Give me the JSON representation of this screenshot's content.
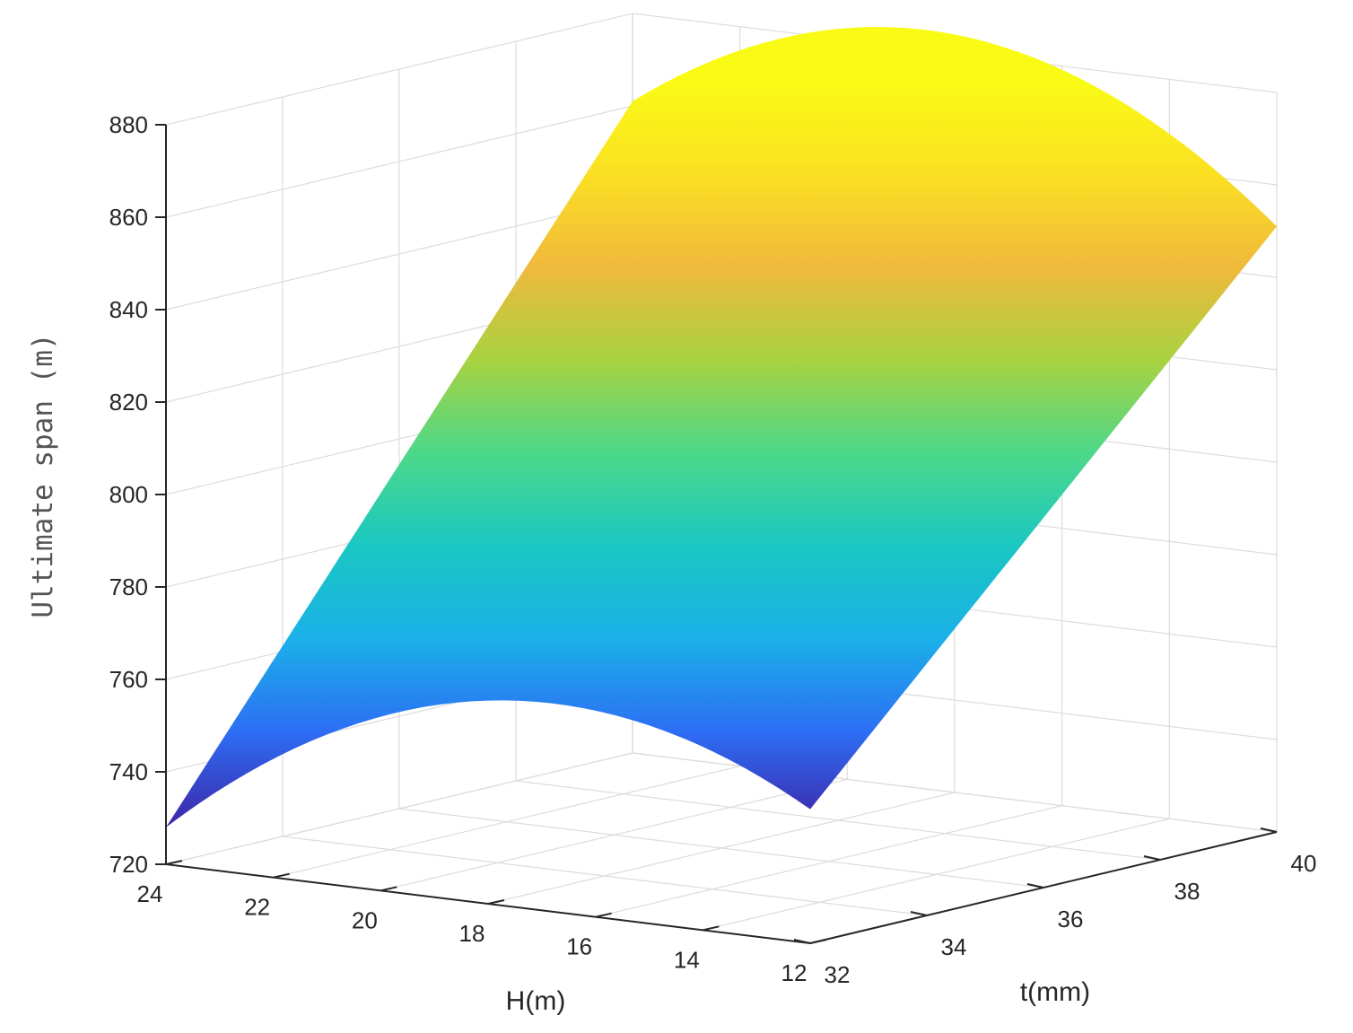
{
  "chart_data": {
    "type": "surface",
    "title": "",
    "xlabel": "H(m)",
    "ylabel": "t(mm)",
    "zlabel": "Ultimate span (m)",
    "x_ticks": [
      24,
      22,
      20,
      18,
      16,
      14,
      12
    ],
    "y_ticks": [
      32,
      34,
      36,
      38,
      40
    ],
    "z_ticks": [
      720,
      740,
      760,
      780,
      800,
      820,
      840,
      860,
      880
    ],
    "xlim": [
      12,
      24
    ],
    "ylim": [
      32,
      40
    ],
    "zlim": [
      720,
      880
    ],
    "grid": true,
    "colormap": [
      "#3e26a8",
      "#2d6df4",
      "#1bb0e8",
      "#1ac7c2",
      "#4cd88a",
      "#a8d240",
      "#f0b93c",
      "#fbe022",
      "#f9fb15"
    ],
    "corners": [
      {
        "H": 24,
        "t": 32,
        "span": 728
      },
      {
        "H": 12,
        "t": 32,
        "span": 749
      },
      {
        "H": 24,
        "t": 40,
        "span": 861
      },
      {
        "H": 12,
        "t": 40,
        "span": 851
      }
    ],
    "edge_peaks": [
      {
        "t": 32,
        "H": 16.5,
        "span": 765
      },
      {
        "t": 40,
        "H": 18.0,
        "span": 884
      }
    ]
  }
}
